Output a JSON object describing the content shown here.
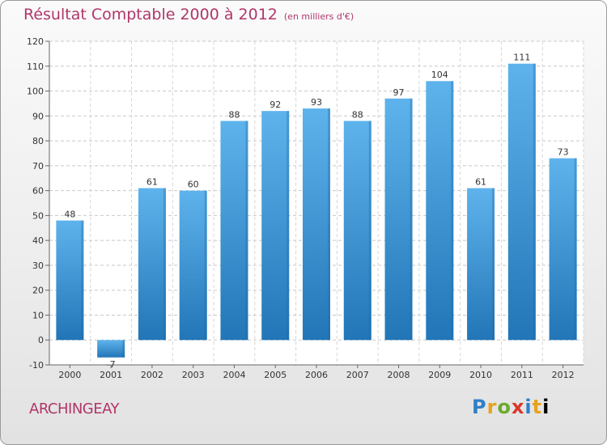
{
  "header": {
    "title": "Résultat Comptable 2000 à 2012",
    "unit": "(en milliers d'€)"
  },
  "footer": {
    "commune": "ARCHINGEAY",
    "logo_letters": [
      "P",
      "r",
      "o",
      "x",
      "i",
      "t",
      "i"
    ]
  },
  "colors": {
    "bar_top": "#5fb3ec",
    "bar_bottom": "#2276b7",
    "title": "#b0366a"
  },
  "chart_data": {
    "type": "bar",
    "title": "Résultat Comptable 2000 à 2012",
    "subtitle": "(en milliers d'€)",
    "categories": [
      "2000",
      "2001",
      "2002",
      "2003",
      "2004",
      "2005",
      "2006",
      "2007",
      "2008",
      "2009",
      "2010",
      "2011",
      "2012"
    ],
    "values": [
      48,
      -7,
      61,
      60,
      88,
      92,
      93,
      88,
      97,
      104,
      61,
      111,
      73
    ],
    "data_labels": [
      "48",
      "-7",
      "61",
      "60",
      "88",
      "92",
      "93",
      "88",
      "97",
      "104",
      "61",
      "111",
      "73"
    ],
    "ylim": [
      -10,
      120
    ],
    "yticks": [
      -10,
      0,
      10,
      20,
      30,
      40,
      50,
      60,
      70,
      80,
      90,
      100,
      110,
      120
    ],
    "grid": true,
    "xlabel": "",
    "ylabel": ""
  }
}
